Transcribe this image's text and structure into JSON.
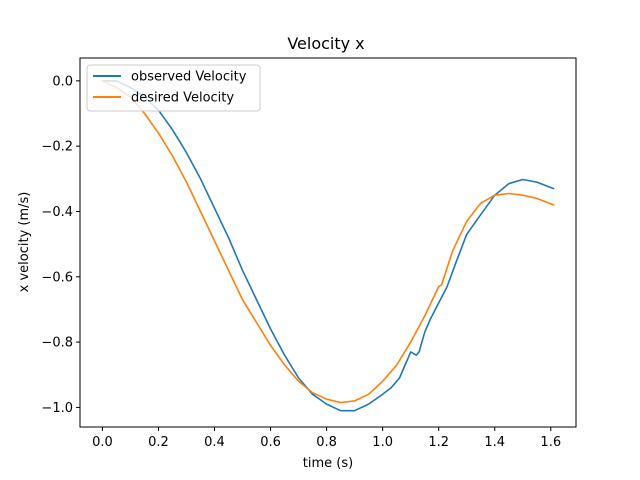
{
  "chart_data": {
    "type": "line",
    "title": "Velocity x",
    "xlabel": "time (s)",
    "ylabel": "x velocity (m/s)",
    "xlim": [
      -0.08,
      1.69
    ],
    "ylim": [
      -1.06,
      0.07
    ],
    "xticks": [
      0.0,
      0.2,
      0.4,
      0.6,
      0.8,
      1.0,
      1.2,
      1.4,
      1.6
    ],
    "xtick_labels": [
      "0.0",
      "0.2",
      "0.4",
      "0.6",
      "0.8",
      "1.0",
      "1.2",
      "1.4",
      "1.6"
    ],
    "yticks": [
      0.0,
      -0.2,
      -0.4,
      -0.6,
      -0.8,
      -1.0
    ],
    "ytick_labels": [
      "0.0",
      "−0.2",
      "−0.4",
      "−0.6",
      "−0.8",
      "−1.0"
    ],
    "grid": false,
    "legend_position": "top-left",
    "series": [
      {
        "name": "observed Velocity",
        "color": "#1f77b4",
        "x": [
          0.0,
          0.05,
          0.1,
          0.15,
          0.2,
          0.25,
          0.3,
          0.35,
          0.4,
          0.45,
          0.5,
          0.55,
          0.6,
          0.65,
          0.7,
          0.75,
          0.8,
          0.85,
          0.9,
          0.95,
          1.0,
          1.03,
          1.06,
          1.08,
          1.1,
          1.12,
          1.13,
          1.15,
          1.17,
          1.2,
          1.23,
          1.26,
          1.3,
          1.35,
          1.4,
          1.45,
          1.5,
          1.55,
          1.61
        ],
        "y": [
          0.0,
          0.0,
          -0.02,
          -0.05,
          -0.09,
          -0.15,
          -0.22,
          -0.3,
          -0.39,
          -0.48,
          -0.58,
          -0.67,
          -0.76,
          -0.84,
          -0.91,
          -0.96,
          -0.99,
          -1.01,
          -1.01,
          -0.99,
          -0.96,
          -0.94,
          -0.91,
          -0.87,
          -0.83,
          -0.84,
          -0.83,
          -0.77,
          -0.73,
          -0.68,
          -0.63,
          -0.56,
          -0.47,
          -0.41,
          -0.35,
          -0.315,
          -0.302,
          -0.31,
          -0.33
        ]
      },
      {
        "name": "desired Velocity",
        "color": "#ff7f0e",
        "x": [
          0.0,
          0.05,
          0.1,
          0.15,
          0.2,
          0.25,
          0.3,
          0.35,
          0.4,
          0.45,
          0.5,
          0.55,
          0.6,
          0.65,
          0.7,
          0.75,
          0.8,
          0.85,
          0.9,
          0.95,
          1.0,
          1.05,
          1.1,
          1.15,
          1.2,
          1.21,
          1.25,
          1.3,
          1.35,
          1.4,
          1.45,
          1.5,
          1.55,
          1.61
        ],
        "y": [
          0.0,
          -0.02,
          -0.05,
          -0.1,
          -0.16,
          -0.23,
          -0.31,
          -0.4,
          -0.49,
          -0.58,
          -0.67,
          -0.74,
          -0.81,
          -0.87,
          -0.92,
          -0.955,
          -0.975,
          -0.985,
          -0.98,
          -0.96,
          -0.92,
          -0.87,
          -0.8,
          -0.72,
          -0.63,
          -0.625,
          -0.52,
          -0.43,
          -0.375,
          -0.35,
          -0.345,
          -0.35,
          -0.36,
          -0.38
        ]
      }
    ]
  }
}
